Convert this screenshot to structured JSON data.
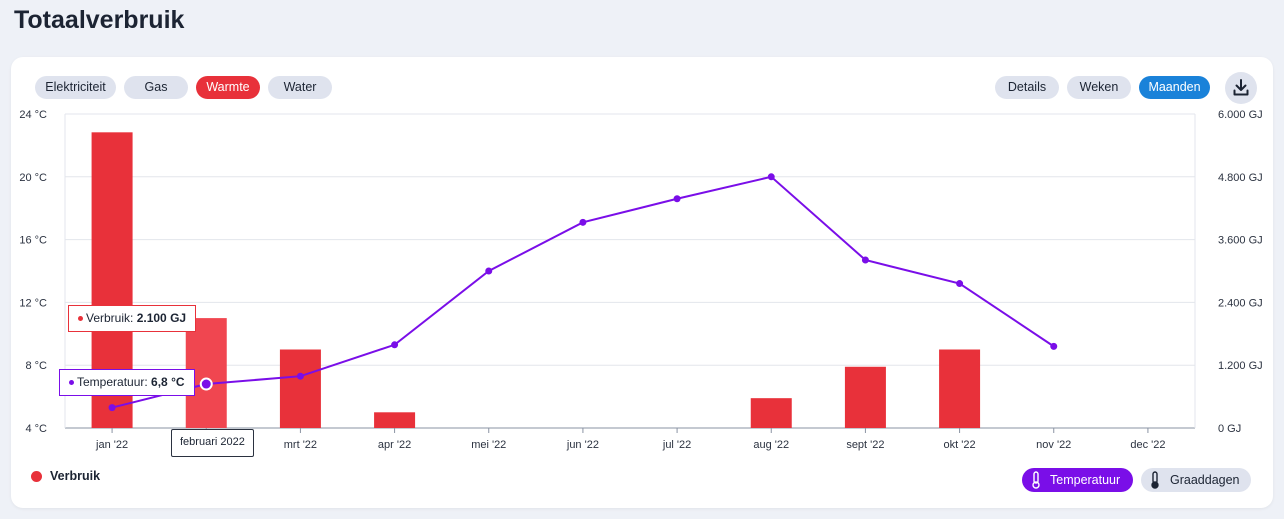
{
  "title": "Totaalverbruik",
  "tabs": [
    {
      "label": "Elektriciteit",
      "active": false
    },
    {
      "label": "Gas",
      "active": false
    },
    {
      "label": "Warmte",
      "active": true
    },
    {
      "label": "Water",
      "active": false
    }
  ],
  "views": [
    {
      "label": "Details",
      "active": false
    },
    {
      "label": "Weken",
      "active": false
    },
    {
      "label": "Maanden",
      "active": true
    }
  ],
  "download_icon": "download-icon",
  "tooltip": {
    "verbruik_label": "Verbruik:",
    "verbruik_value": "2.100 GJ",
    "temp_label": "Temperatuur:",
    "temp_value": "6,8 °C",
    "month_label": "februari 2022"
  },
  "legend": {
    "label": "Verbruik",
    "color": "#e8313a"
  },
  "toggles": [
    {
      "label": "Temperatuur",
      "active": true,
      "icon": "thermometer-icon",
      "color": "#7a0ee8"
    },
    {
      "label": "Graaddagen",
      "active": false,
      "icon": "thermometer-icon",
      "color": "#dfe3ee"
    }
  ],
  "chart_data": {
    "type": "bar",
    "categories": [
      "jan '22",
      "feb '22",
      "mrt '22",
      "apr '22",
      "mei '22",
      "jun '22",
      "jul '22",
      "aug '22",
      "sept '22",
      "okt '22",
      "nov '22",
      "dec '22"
    ],
    "x_tick_labels": [
      "jan '22",
      "",
      "mrt '22",
      "apr '22",
      "mei '22",
      "jun '22",
      "jul '22",
      "aug '22",
      "sept '22",
      "okt '22",
      "nov '22",
      "dec '22"
    ],
    "series": [
      {
        "name": "Verbruik",
        "type": "bar",
        "axis": "right",
        "unit": "GJ",
        "color": "#e8313a",
        "values": [
          5650,
          2100,
          1500,
          300,
          0,
          0,
          0,
          570,
          1170,
          1500,
          0,
          0
        ]
      },
      {
        "name": "Temperatuur",
        "type": "line",
        "axis": "left",
        "unit": "°C",
        "color": "#7a0ee8",
        "values": [
          5.3,
          6.8,
          7.3,
          9.3,
          14.0,
          17.1,
          18.6,
          20.0,
          14.7,
          13.2,
          9.2,
          null
        ]
      }
    ],
    "y_left": {
      "min": 4,
      "max": 24,
      "ticks": [
        "4 °C",
        "8 °C",
        "12 °C",
        "16 °C",
        "20 °C",
        "24 °C"
      ]
    },
    "y_right": {
      "min": 0,
      "max": 6000,
      "ticks": [
        "0 GJ",
        "1.200 GJ",
        "2.400 GJ",
        "3.600 GJ",
        "4.800 GJ",
        "6.000 GJ"
      ]
    },
    "grid": true,
    "highlight_index": 1
  }
}
